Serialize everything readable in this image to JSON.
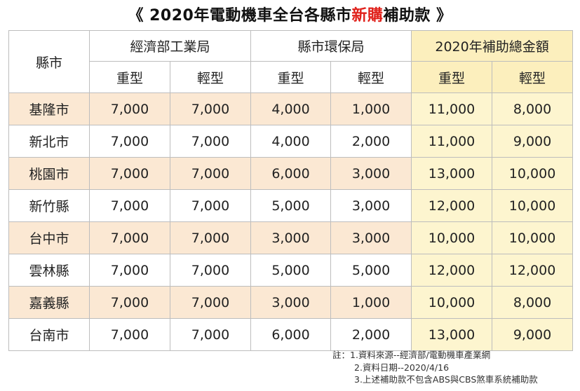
{
  "title": {
    "prefix": "《 2020年電動機車全台各縣市",
    "highlight": "新購",
    "suffix": "補助款 》"
  },
  "colors": {
    "highlight": "#e0201a",
    "alt_row": "#fbe8d3",
    "total_col": "#fdf5cf"
  },
  "headers": {
    "city": "縣市",
    "groups": [
      "經濟部工業局",
      "縣市環保局",
      "2020年補助總金額"
    ],
    "sub": [
      "重型",
      "輕型",
      "重型",
      "輕型",
      "重型",
      "輕型"
    ]
  },
  "rows": [
    {
      "city": "基隆市",
      "values": [
        "7,000",
        "7,000",
        "4,000",
        "1,000",
        "11,000",
        "8,000"
      ]
    },
    {
      "city": "新北市",
      "values": [
        "7,000",
        "7,000",
        "4,000",
        "2,000",
        "11,000",
        "9,000"
      ]
    },
    {
      "city": "桃園市",
      "values": [
        "7,000",
        "7,000",
        "6,000",
        "3,000",
        "13,000",
        "10,000"
      ]
    },
    {
      "city": "新竹縣",
      "values": [
        "7,000",
        "7,000",
        "5,000",
        "3,000",
        "12,000",
        "10,000"
      ]
    },
    {
      "city": "台中市",
      "values": [
        "7,000",
        "7,000",
        "3,000",
        "3,000",
        "10,000",
        "10,000"
      ]
    },
    {
      "city": "雲林縣",
      "values": [
        "7,000",
        "7,000",
        "5,000",
        "5,000",
        "12,000",
        "12,000"
      ]
    },
    {
      "city": "嘉義縣",
      "values": [
        "7,000",
        "7,000",
        "3,000",
        "1,000",
        "10,000",
        "8,000"
      ]
    },
    {
      "city": "台南市",
      "values": [
        "7,000",
        "7,000",
        "6,000",
        "2,000",
        "13,000",
        "9,000"
      ]
    }
  ],
  "notes": [
    "註：1.資料來源--經濟部/電動機車產業網",
    "2.資料日期--2020/4/16",
    "3.上述補助款不包含ABS與CBS煞車系統補助款"
  ]
}
